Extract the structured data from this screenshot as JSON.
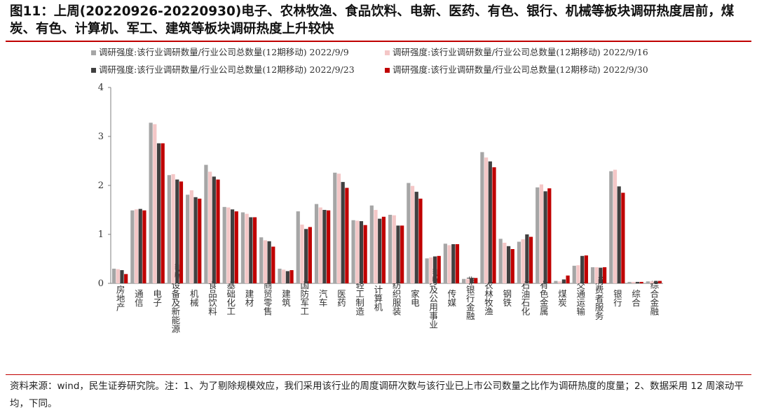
{
  "title": "图11：上周(20220926-20220930)电子、农林牧渔、食品饮料、电新、医药、有色、银行、机械等板块调研热度居前，煤炭、有色、计算机、军工、建筑等板块调研热度上升较快",
  "source": "资料来源：wind，民生证券研究院。注：1、为了剔除规模效应，我们采用该行业的周度调研次数与该行业已上市公司数量之比作为调研热度的度量；2、数据采用 12 周滚动平均，下同。",
  "colors": {
    "series": [
      "#a6a6a6",
      "#f4c7c7",
      "#404040",
      "#c00000"
    ],
    "title_rule": "#c00000"
  },
  "chart_data": {
    "type": "bar",
    "categories": [
      "房地产",
      "通信",
      "电子",
      "电力设备及新能源",
      "机械",
      "食品饮料",
      "基础化工",
      "建材",
      "商贸零售",
      "建筑",
      "国防军工",
      "汽车",
      "医药",
      "轻工制造",
      "计算机",
      "纺织服装",
      "家电",
      "电力及公用事业",
      "传媒",
      "非银行金融",
      "农林牧渔",
      "钢铁",
      "石油石化",
      "有色金属",
      "煤炭",
      "交通运输",
      "消费者服务",
      "银行",
      "综合",
      "综合金融"
    ],
    "series": [
      {
        "name": "调研强度:该行业调研数量/行业公司总数量(12期移动) 2022/9/9",
        "values": [
          0.3,
          1.49,
          3.28,
          2.21,
          1.81,
          2.42,
          1.56,
          1.45,
          0.94,
          0.3,
          1.47,
          1.62,
          2.26,
          1.29,
          1.59,
          1.4,
          2.05,
          0.51,
          0.81,
          0.09,
          2.68,
          0.91,
          0.85,
          1.96,
          0.05,
          0.36,
          0.33,
          2.29,
          0.03,
          0.04
        ]
      },
      {
        "name": "调研强度:该行业调研数量/行业公司总数量(12期移动) 2022/9/16",
        "values": [
          0.29,
          1.51,
          3.25,
          2.23,
          1.9,
          2.28,
          1.55,
          1.42,
          0.88,
          0.28,
          1.2,
          1.55,
          2.24,
          1.28,
          1.5,
          1.39,
          1.99,
          0.53,
          0.78,
          0.09,
          2.57,
          0.83,
          0.9,
          2.02,
          0.04,
          0.37,
          0.33,
          2.32,
          0.03,
          0.04
        ]
      },
      {
        "name": "调研强度:该行业调研数量/行业公司总数量(12期移动) 2022/9/23",
        "values": [
          0.27,
          1.52,
          2.86,
          2.12,
          1.76,
          2.18,
          1.51,
          1.35,
          0.86,
          0.25,
          1.11,
          1.5,
          2.07,
          1.27,
          1.32,
          1.18,
          1.87,
          0.55,
          0.8,
          0.11,
          2.49,
          0.76,
          1.0,
          1.88,
          0.08,
          0.56,
          0.32,
          1.98,
          0.03,
          0.05
        ]
      },
      {
        "name": "调研强度:该行业调研数量/行业公司总数量(12期移动) 2022/9/30",
        "values": [
          0.19,
          1.49,
          2.86,
          2.08,
          1.73,
          2.12,
          1.47,
          1.35,
          0.75,
          0.27,
          1.15,
          1.49,
          1.95,
          1.19,
          1.36,
          1.18,
          1.73,
          0.56,
          0.8,
          0.11,
          2.37,
          0.7,
          0.95,
          1.94,
          0.16,
          0.57,
          0.33,
          1.85,
          0.03,
          0.05
        ]
      }
    ],
    "yticks": [
      "0",
      "1",
      "2",
      "3",
      "4"
    ],
    "ylim": [
      0,
      4
    ],
    "legend_position": "top",
    "grid": false
  }
}
